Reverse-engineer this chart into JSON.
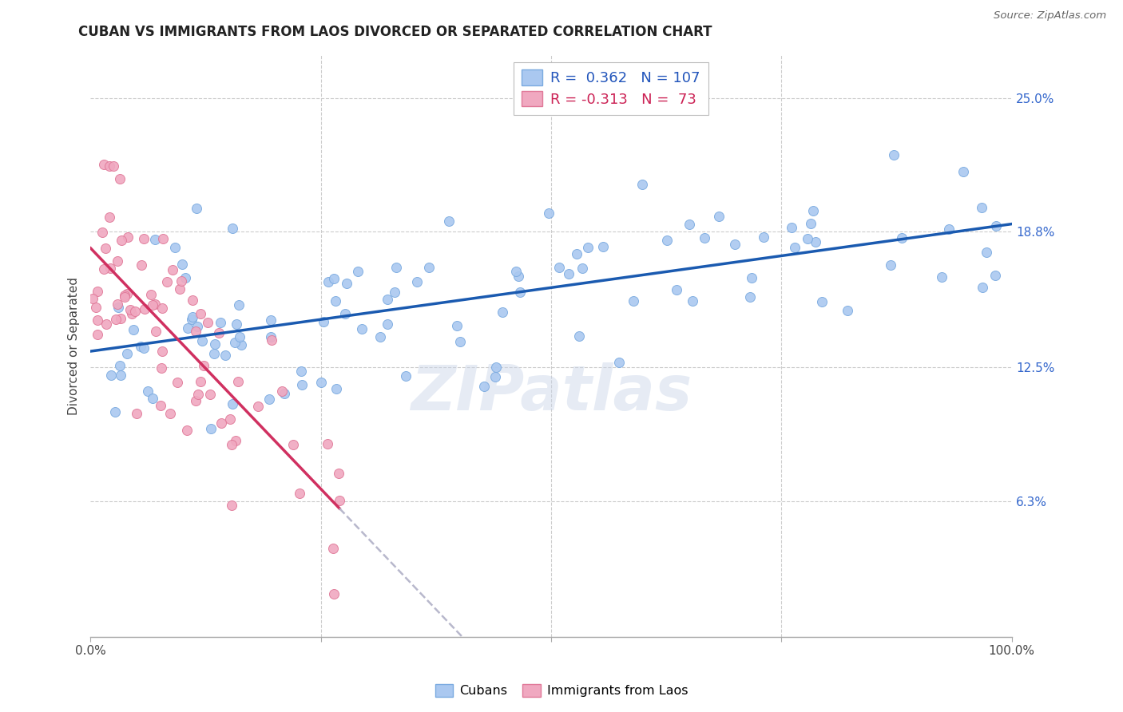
{
  "title": "CUBAN VS IMMIGRANTS FROM LAOS DIVORCED OR SEPARATED CORRELATION CHART",
  "source": "Source: ZipAtlas.com",
  "ylabel": "Divorced or Separated",
  "yticks": [
    0.0,
    0.063,
    0.125,
    0.188,
    0.25
  ],
  "ytick_labels": [
    "",
    "6.3%",
    "12.5%",
    "18.8%",
    "25.0%"
  ],
  "xlim": [
    0.0,
    1.0
  ],
  "ylim": [
    0.0,
    0.27
  ],
  "blue_color": "#aac8f0",
  "pink_color": "#f0a8c0",
  "blue_edge_color": "#7aaae0",
  "pink_edge_color": "#e07898",
  "blue_line_color": "#1a5ab0",
  "pink_line_color": "#d03060",
  "pink_dash_color": "#b8b8cc",
  "watermark": "ZIPatlas",
  "cubans_label": "Cubans",
  "laos_label": "Immigrants from Laos",
  "seed_blue": 77,
  "seed_pink": 33,
  "n_blue": 107,
  "n_pink": 73
}
